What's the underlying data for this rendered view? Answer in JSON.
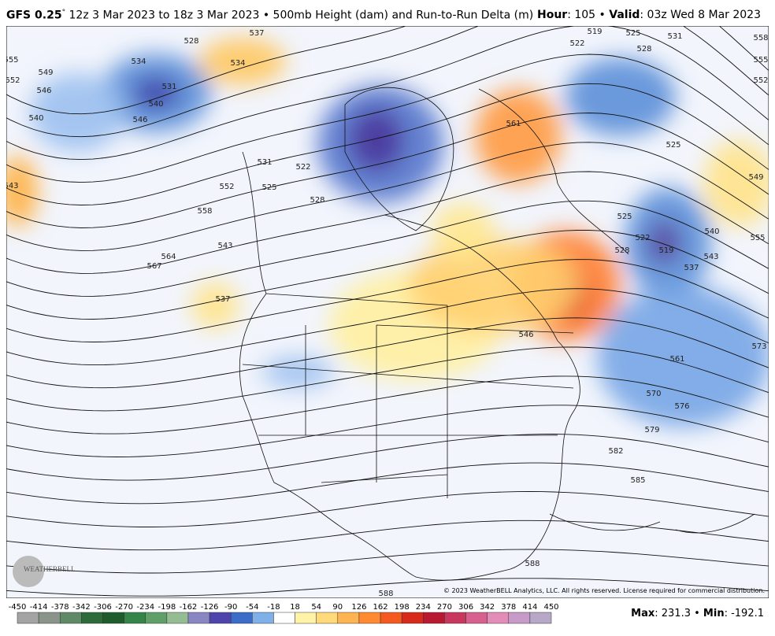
{
  "header": {
    "model": "GFS 0.25",
    "degree": "°",
    "run": " 12z 3 Mar 2023 to 18z 3 Mar 2023 • 500mb Height (dam) and Run-to-Run Delta (m)",
    "hour_label": "Hour",
    "hour_text": ": 105 • ",
    "valid_label": "Valid",
    "valid_text": ": 03z Wed 8 Mar 2023"
  },
  "map": {
    "contour_labels": [
      528,
      537,
      555,
      552,
      549,
      546,
      540,
      534,
      531,
      540,
      546,
      534,
      543,
      531,
      522,
      528,
      525,
      552,
      558,
      567,
      564,
      543,
      537,
      519,
      522,
      525,
      528,
      531,
      558,
      555,
      552,
      525,
      549,
      555,
      540,
      543,
      537,
      525,
      522,
      519,
      528,
      573,
      561,
      570,
      576,
      579,
      582,
      585,
      588,
      588,
      546,
      561
    ],
    "logo": "WEATHERBELL",
    "copyright": "© 2023 WeatherBELL Analytics, LLC. All rights reserved. License required for commercial distribution."
  },
  "colorbar": {
    "ticks": [
      -450,
      -414,
      -378,
      -342,
      -306,
      -270,
      -234,
      -198,
      -162,
      -126,
      -90,
      -54,
      -18,
      18,
      54,
      90,
      126,
      162,
      198,
      234,
      270,
      306,
      342,
      378,
      414,
      450
    ],
    "colors": [
      "#a4a4a4",
      "#8a948a",
      "#5f8a68",
      "#2e6b3a",
      "#1e5c2c",
      "#35854a",
      "#5fa068",
      "#94bd94",
      "#8a86c4",
      "#4e44ac",
      "#3a6cc8",
      "#7fb0e8",
      "#ffffff",
      "#fff3a8",
      "#ffd97a",
      "#ffb452",
      "#ff8a32",
      "#f45a20",
      "#d82a1a",
      "#b81830",
      "#c8385e",
      "#d8608e",
      "#e48cb8",
      "#c89ac8",
      "#b8a8c8"
    ]
  },
  "footer": {
    "max_label": "Max",
    "max_text": ": 231.3 • ",
    "min_label": "Min",
    "min_text": ": -192.1"
  }
}
